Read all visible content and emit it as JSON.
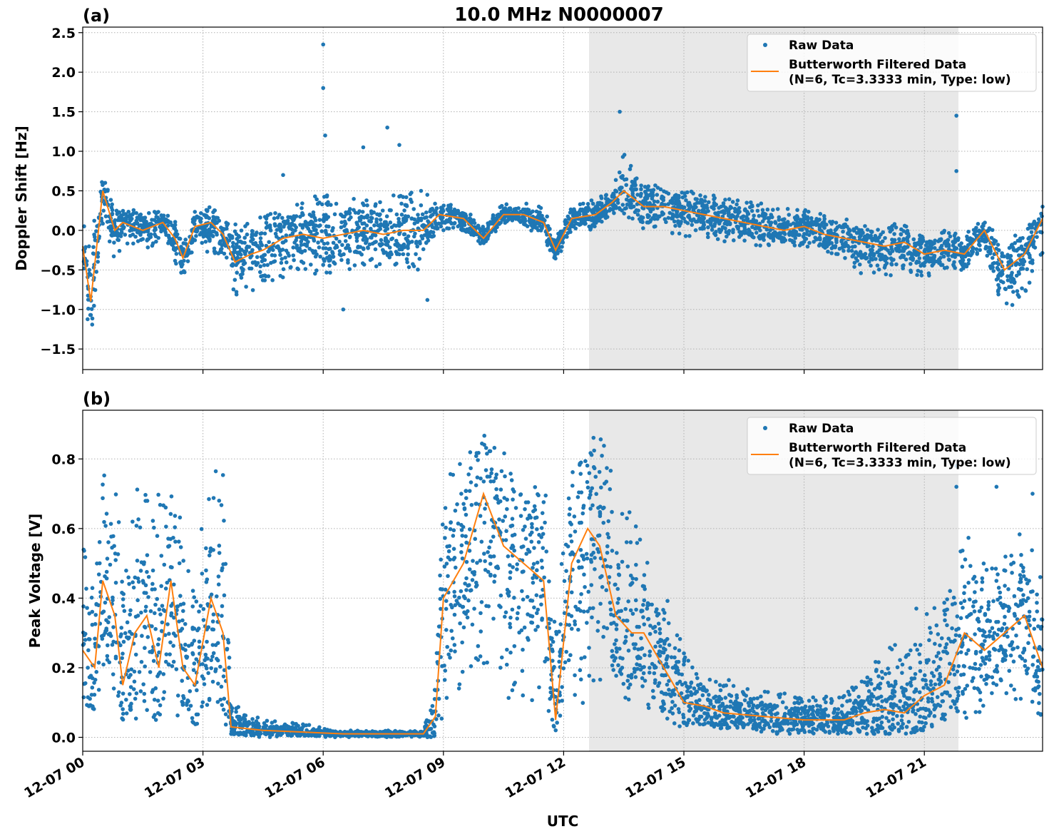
{
  "title": "10.0 MHz N0000007",
  "colors": {
    "raw": "#1f77b4",
    "filtered": "#ff7f0e",
    "shade": "#e8e8e8",
    "grid": "#b0b0b0"
  },
  "chart_data": [
    {
      "panel_label": "(a)",
      "type": "scatter+line",
      "ylabel": "Doppler Shift [Hz]",
      "xlabel": "",
      "ylim": [
        -1.76,
        2.57
      ],
      "yticks": [
        -1.5,
        -1.0,
        -0.5,
        0.0,
        0.5,
        1.0,
        1.5,
        2.0,
        2.5
      ],
      "ytick_labels": [
        "−1.5",
        "−1.0",
        "−0.5",
        "0.0",
        "0.5",
        "1.0",
        "1.5",
        "2.0",
        "2.5"
      ],
      "grid": true,
      "legend": {
        "position": "top-right",
        "entries": [
          "Raw Data",
          "Butterworth Filtered Data",
          "(N=6, Tc=3.3333 min, Type: low)"
        ]
      },
      "shaded_span": [
        "12:38",
        "21:51"
      ],
      "series": [
        {
          "name": "Butterworth Filtered Data (N=6, Tc=3.3333 min, Type: low)",
          "kind": "line",
          "x": [
            "00:00",
            "00:12",
            "00:30",
            "00:48",
            "01:00",
            "01:30",
            "02:00",
            "02:18",
            "02:30",
            "02:48",
            "03:12",
            "03:30",
            "03:48",
            "04:12",
            "04:30",
            "05:00",
            "05:30",
            "06:00",
            "06:30",
            "07:00",
            "07:30",
            "08:00",
            "08:30",
            "08:54",
            "09:30",
            "10:00",
            "10:30",
            "11:00",
            "11:30",
            "11:48",
            "12:12",
            "12:48",
            "13:12",
            "13:30",
            "14:00",
            "14:30",
            "15:00",
            "15:30",
            "16:00",
            "16:30",
            "17:00",
            "17:30",
            "18:00",
            "18:30",
            "19:00",
            "19:30",
            "20:00",
            "20:30",
            "21:00",
            "21:30",
            "22:00",
            "22:30",
            "23:00",
            "23:30",
            "23:57"
          ],
          "y": [
            -0.2,
            -0.9,
            0.5,
            0.0,
            0.1,
            0.0,
            0.1,
            -0.1,
            -0.35,
            0.05,
            0.1,
            -0.05,
            -0.4,
            -0.3,
            -0.25,
            -0.1,
            -0.05,
            -0.1,
            -0.05,
            0.0,
            -0.05,
            0.0,
            0.0,
            0.2,
            0.15,
            -0.1,
            0.2,
            0.2,
            0.1,
            -0.25,
            0.15,
            0.2,
            0.35,
            0.5,
            0.3,
            0.3,
            0.25,
            0.2,
            0.15,
            0.1,
            0.05,
            0.0,
            0.05,
            -0.05,
            -0.1,
            -0.15,
            -0.2,
            -0.15,
            -0.3,
            -0.25,
            -0.3,
            0.0,
            -0.5,
            -0.3,
            0.15
          ]
        },
        {
          "name": "Raw Data",
          "kind": "scatter-envelope",
          "low": [
            -0.5,
            -1.55,
            0.0,
            -0.4,
            -0.2,
            -0.3,
            -0.1,
            -0.4,
            -0.6,
            -0.2,
            -0.3,
            -0.3,
            -0.9,
            -0.8,
            -0.7,
            -0.6,
            -0.5,
            -0.6,
            -0.6,
            -0.5,
            -0.5,
            -0.5,
            -0.5,
            0.0,
            0.0,
            -0.2,
            0.1,
            0.05,
            -0.1,
            -0.4,
            0.0,
            0.0,
            0.2,
            0.2,
            0.0,
            0.0,
            -0.1,
            -0.1,
            -0.15,
            -0.2,
            -0.2,
            -0.2,
            -0.2,
            -0.3,
            -0.4,
            -0.6,
            -0.6,
            -0.5,
            -0.6,
            -0.5,
            -0.5,
            -0.2,
            -1.1,
            -0.8,
            -0.3
          ],
          "high": [
            0.2,
            -0.1,
            0.85,
            0.3,
            0.3,
            0.25,
            0.25,
            0.15,
            -0.1,
            0.25,
            0.3,
            0.2,
            0.1,
            0.1,
            0.2,
            0.3,
            0.4,
            0.5,
            0.4,
            0.4,
            0.4,
            0.5,
            0.5,
            0.35,
            0.3,
            0.05,
            0.35,
            0.35,
            0.3,
            -0.1,
            0.3,
            0.4,
            0.5,
            1.0,
            0.7,
            0.6,
            0.5,
            0.5,
            0.4,
            0.4,
            0.35,
            0.3,
            0.3,
            0.2,
            0.15,
            0.1,
            0.1,
            0.1,
            -0.05,
            0.0,
            -0.05,
            0.2,
            -0.2,
            0.1,
            0.3
          ],
          "outliers": [
            [
              "06:00",
              2.35
            ],
            [
              "06:00",
              1.8
            ],
            [
              "06:03",
              1.2
            ],
            [
              "07:36",
              1.3
            ],
            [
              "13:24",
              1.5
            ],
            [
              "21:48",
              1.45
            ],
            [
              "21:48",
              0.75
            ],
            [
              "05:00",
              0.7
            ],
            [
              "06:30",
              -1.0
            ],
            [
              "08:36",
              -0.88
            ],
            [
              "07:00",
              1.05
            ],
            [
              "07:54",
              1.08
            ]
          ]
        }
      ]
    },
    {
      "panel_label": "(b)",
      "type": "scatter+line",
      "ylabel": "Peak Voltage [V]",
      "xlabel": "UTC",
      "ylim": [
        -0.04,
        0.94
      ],
      "yticks": [
        0.0,
        0.2,
        0.4,
        0.6,
        0.8
      ],
      "ytick_labels": [
        "0.0",
        "0.2",
        "0.4",
        "0.6",
        "0.8"
      ],
      "grid": true,
      "legend": {
        "position": "top-right",
        "entries": [
          "Raw Data",
          "Butterworth Filtered Data",
          "(N=6, Tc=3.3333 min, Type: low)"
        ]
      },
      "shaded_span": [
        "12:38",
        "21:51"
      ],
      "series": [
        {
          "name": "Butterworth Filtered Data (N=6, Tc=3.3333 min, Type: low)",
          "kind": "line",
          "x": [
            "00:00",
            "00:18",
            "00:30",
            "00:48",
            "01:00",
            "01:18",
            "01:36",
            "01:54",
            "02:12",
            "02:30",
            "02:48",
            "03:12",
            "03:30",
            "03:42",
            "04:30",
            "05:30",
            "06:30",
            "07:30",
            "08:30",
            "08:48",
            "09:00",
            "09:30",
            "10:00",
            "10:30",
            "11:00",
            "11:30",
            "11:48",
            "12:12",
            "12:36",
            "12:54",
            "13:18",
            "13:42",
            "14:00",
            "14:30",
            "15:00",
            "15:30",
            "16:00",
            "17:00",
            "18:00",
            "19:00",
            "19:30",
            "20:00",
            "20:30",
            "21:00",
            "21:30",
            "22:00",
            "22:30",
            "23:00",
            "23:30",
            "23:57"
          ],
          "y": [
            0.25,
            0.2,
            0.45,
            0.35,
            0.15,
            0.3,
            0.35,
            0.2,
            0.45,
            0.2,
            0.15,
            0.4,
            0.3,
            0.03,
            0.02,
            0.015,
            0.01,
            0.01,
            0.01,
            0.06,
            0.4,
            0.5,
            0.7,
            0.55,
            0.5,
            0.45,
            0.05,
            0.5,
            0.6,
            0.55,
            0.35,
            0.3,
            0.3,
            0.2,
            0.1,
            0.09,
            0.07,
            0.06,
            0.05,
            0.05,
            0.07,
            0.08,
            0.07,
            0.12,
            0.15,
            0.3,
            0.25,
            0.3,
            0.35,
            0.2
          ]
        },
        {
          "name": "Raw Data",
          "kind": "scatter-envelope",
          "low": [
            0.1,
            0.08,
            0.15,
            0.1,
            0.05,
            0.05,
            0.05,
            0.05,
            0.05,
            0.05,
            0.03,
            0.1,
            0.05,
            0.01,
            0.0,
            0.0,
            0.0,
            0.0,
            0.0,
            0.0,
            0.05,
            0.1,
            0.2,
            0.1,
            0.1,
            0.1,
            0.02,
            0.1,
            0.05,
            0.15,
            0.1,
            0.1,
            0.08,
            0.05,
            0.02,
            0.02,
            0.02,
            0.01,
            0.01,
            0.01,
            0.01,
            0.01,
            0.01,
            0.02,
            0.05,
            0.05,
            0.08,
            0.1,
            0.1,
            0.05
          ],
          "high": [
            0.6,
            0.5,
            0.75,
            0.8,
            0.45,
            0.7,
            0.8,
            0.7,
            0.75,
            0.6,
            0.5,
            0.8,
            0.8,
            0.1,
            0.05,
            0.04,
            0.02,
            0.02,
            0.02,
            0.15,
            0.75,
            0.8,
            0.88,
            0.85,
            0.8,
            0.8,
            0.3,
            0.85,
            0.87,
            0.88,
            0.75,
            0.65,
            0.6,
            0.45,
            0.25,
            0.2,
            0.17,
            0.14,
            0.12,
            0.12,
            0.2,
            0.3,
            0.25,
            0.35,
            0.4,
            0.6,
            0.5,
            0.55,
            0.6,
            0.5
          ],
          "outliers": [
            [
              "21:48",
              0.78
            ],
            [
              "21:48",
              0.72
            ],
            [
              "22:48",
              0.72
            ],
            [
              "23:42",
              0.7
            ],
            [
              "20:48",
              0.37
            ]
          ]
        }
      ]
    }
  ],
  "xaxis": {
    "ticks": [
      "00:00",
      "03:00",
      "06:00",
      "09:00",
      "12:00",
      "15:00",
      "18:00",
      "21:00"
    ],
    "tick_labels": [
      "12-07 00",
      "12-07 03",
      "12-07 06",
      "12-07 09",
      "12-07 12",
      "12-07 15",
      "12-07 18",
      "12-07 21"
    ],
    "xlim": [
      "00:00",
      "23:57"
    ]
  }
}
